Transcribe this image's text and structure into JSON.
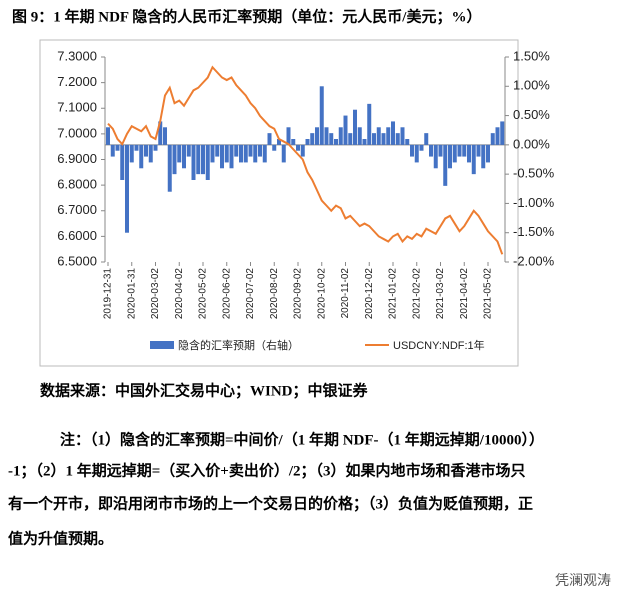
{
  "chart_data": {
    "type": "bar-line",
    "title": "图 9：1 年期 NDF 隐含的人民币汇率预期（单位：元人民币/美元；%）",
    "categories": [
      "2019-12-31",
      null,
      null,
      null,
      null,
      "2020-01-31",
      null,
      null,
      null,
      null,
      "2020-03-02",
      null,
      null,
      null,
      null,
      "2020-04-02",
      null,
      null,
      null,
      null,
      "2020-05-02",
      null,
      null,
      null,
      null,
      "2020-06-02",
      null,
      null,
      null,
      null,
      "2020-07-02",
      null,
      null,
      null,
      null,
      "2020-08-02",
      null,
      null,
      null,
      null,
      "2020-09-02",
      null,
      null,
      null,
      null,
      "2020-10-02",
      null,
      null,
      null,
      null,
      "2020-11-02",
      null,
      null,
      null,
      null,
      "2020-12-02",
      null,
      null,
      null,
      null,
      "2021-01-02",
      null,
      null,
      null,
      null,
      "2021-02-02",
      null,
      null,
      null,
      null,
      "2021-03-02",
      null,
      null,
      null,
      null,
      "2021-04-02",
      null,
      null,
      null,
      null,
      "2021-05-02",
      null,
      null,
      null
    ],
    "series": [
      {
        "name": "隐含的汇率预期（右轴）",
        "color": "#4472c4",
        "axis": "y2",
        "kind": "bar",
        "values": [
          0.3,
          -0.2,
          -0.1,
          -0.6,
          -1.5,
          -0.3,
          -0.1,
          -0.4,
          -0.2,
          -0.3,
          -0.1,
          0.4,
          0.3,
          -0.8,
          -0.5,
          -0.3,
          -0.4,
          -0.2,
          -0.6,
          -0.5,
          -0.5,
          -0.6,
          -0.3,
          -0.2,
          -0.4,
          -0.3,
          -0.4,
          -0.2,
          -0.3,
          -0.3,
          -0.2,
          -0.3,
          -0.2,
          -0.3,
          0.2,
          -0.1,
          0.1,
          -0.3,
          0.3,
          0.1,
          -0.1,
          -0.2,
          0.1,
          0.2,
          0.3,
          1.0,
          0.3,
          0.2,
          0.1,
          0.3,
          0.5,
          0.2,
          0.6,
          0.3,
          0.1,
          0.7,
          0.2,
          0.3,
          0.2,
          0.3,
          0.4,
          0.2,
          0.3,
          0.1,
          -0.2,
          -0.3,
          -0.1,
          0.2,
          -0.2,
          -0.4,
          -0.2,
          -0.7,
          -0.4,
          -0.3,
          -0.2,
          -0.2,
          -0.3,
          -0.5,
          -0.2,
          -0.4,
          -0.3,
          0.2,
          0.3,
          0.4
        ]
      },
      {
        "name": "USDCNY:NDF:1年",
        "color": "#ed7d31",
        "axis": "y",
        "kind": "line",
        "values": [
          7.04,
          7.02,
          6.98,
          6.96,
          7.0,
          7.03,
          7.02,
          7.01,
          7.03,
          6.99,
          6.98,
          7.05,
          7.15,
          7.18,
          7.12,
          7.13,
          7.11,
          7.14,
          7.17,
          7.18,
          7.2,
          7.22,
          7.26,
          7.24,
          7.22,
          7.21,
          7.22,
          7.19,
          7.17,
          7.15,
          7.12,
          7.1,
          7.07,
          7.05,
          7.03,
          7.02,
          6.98,
          6.97,
          6.96,
          6.94,
          6.92,
          6.9,
          6.85,
          6.82,
          6.78,
          6.74,
          6.72,
          6.7,
          6.72,
          6.71,
          6.67,
          6.68,
          6.66,
          6.64,
          6.65,
          6.64,
          6.62,
          6.6,
          6.59,
          6.58,
          6.6,
          6.61,
          6.58,
          6.6,
          6.59,
          6.61,
          6.6,
          6.63,
          6.62,
          6.61,
          6.64,
          6.67,
          6.68,
          6.65,
          6.62,
          6.64,
          6.67,
          6.7,
          6.68,
          6.65,
          6.62,
          6.6,
          6.58,
          6.53
        ]
      }
    ],
    "ylim": [
      6.5,
      7.3
    ],
    "yticks": [
      {
        "value": 6.5,
        "label": "6.5000"
      },
      {
        "value": 6.6,
        "label": "6.6000"
      },
      {
        "value": 6.7,
        "label": "6.7000"
      },
      {
        "value": 6.8,
        "label": "6.8000"
      },
      {
        "value": 6.9,
        "label": "6.9000"
      },
      {
        "value": 7.0,
        "label": "7.0000"
      },
      {
        "value": 7.1,
        "label": "7.1000"
      },
      {
        "value": 7.2,
        "label": "7.2000"
      },
      {
        "value": 7.3,
        "label": "7.3000"
      }
    ],
    "y2lim": [
      -2,
      1.5
    ],
    "y2ticks": [
      {
        "value": -2,
        "label": "-2.00%"
      },
      {
        "value": -1.5,
        "label": "-1.50%"
      },
      {
        "value": -1,
        "label": "-1.00%"
      },
      {
        "value": -0.5,
        "label": "-0.50%"
      },
      {
        "value": 0,
        "label": "0.00%"
      },
      {
        "value": 0.5,
        "label": "0.50%"
      },
      {
        "value": 1,
        "label": "1.00%"
      },
      {
        "value": 1.5,
        "label": "1.50%"
      }
    ],
    "legend": "bottom"
  },
  "source": "数据来源：中国外汇交易中心；WIND；中银证券",
  "notes": [
    "注：（1）隐含的汇率预期=中间价/（1 年期 NDF-（1 年期远掉期/10000））",
    "-1；（2）1 年期远掉期=（买入价+卖出价）/2；（3）如果内地市场和香港市场只",
    "有一个开市，即沿用闭市市场的上一个交易日的价格；（3）负值为贬值预期，正",
    "值为升值预期。"
  ],
  "watermark": "凭澜观涛"
}
